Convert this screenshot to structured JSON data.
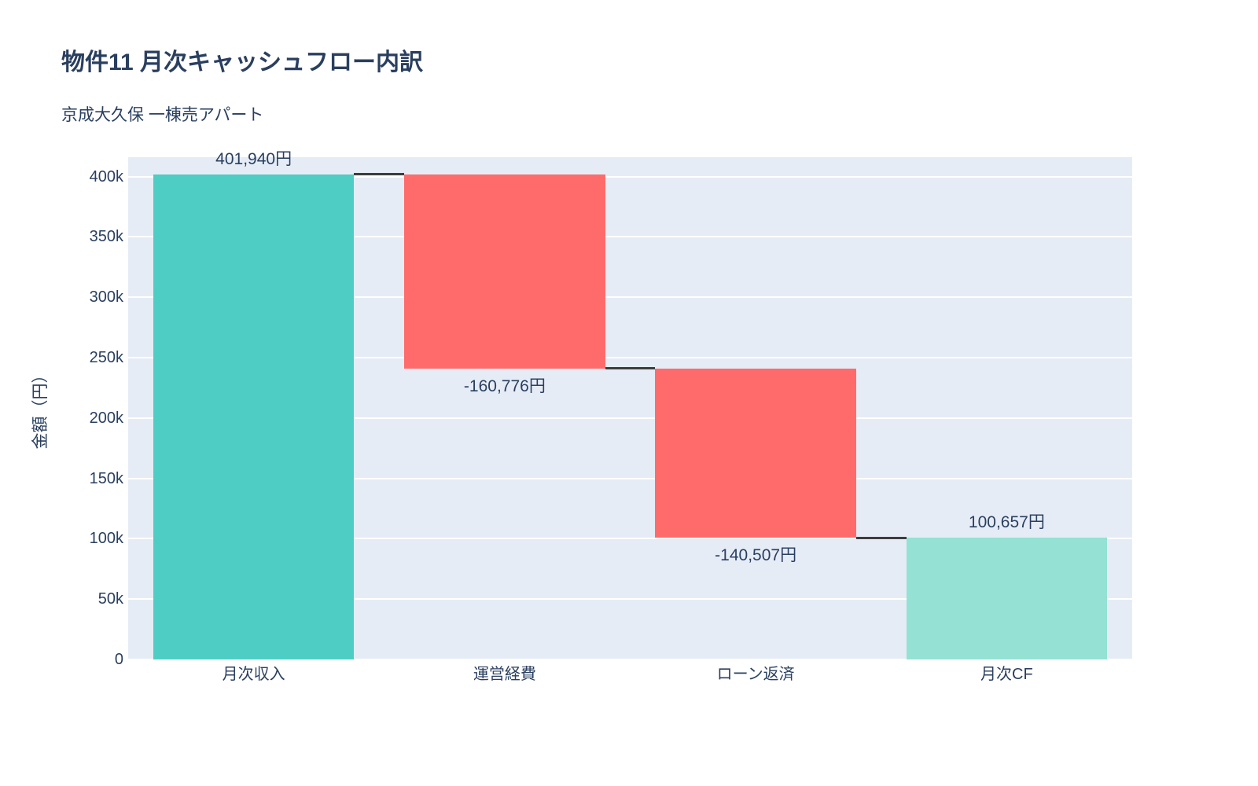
{
  "header": {
    "title": "物件11 月次キャッシュフロー内訳",
    "subtitle": "京成大久保 一棟売アパート"
  },
  "chart_data": {
    "type": "waterfall",
    "title": "物件11 月次キャッシュフロー内訳",
    "subtitle": "京成大久保 一棟売アパート",
    "categories": [
      "月次収入",
      "運営経費",
      "ローン返済",
      "月次CF"
    ],
    "values": [
      401940,
      -160776,
      -140507,
      100657
    ],
    "measures": [
      "relative",
      "relative",
      "relative",
      "total"
    ],
    "data_labels": [
      "401,940円",
      "-160,776円",
      "-140,507円",
      "100,657円"
    ],
    "running_totals": [
      401940,
      241164,
      100657,
      100657
    ],
    "xlabel": "",
    "ylabel": "金額（円）",
    "ylim": [
      0,
      416000
    ],
    "ytick_step": 50000,
    "ytick_labels": [
      "0",
      "50k",
      "100k",
      "150k",
      "200k",
      "250k",
      "300k",
      "350k",
      "400k"
    ],
    "grid": true,
    "legend": "none",
    "colors": {
      "increase": "#4ECDC4",
      "decrease": "#FF6B6B",
      "total": "#95E1D3",
      "connector": "#3D3D3D",
      "plot_bg": "#E5ECF6",
      "grid": "#FFFFFF",
      "text": "#2A3F5F"
    }
  }
}
